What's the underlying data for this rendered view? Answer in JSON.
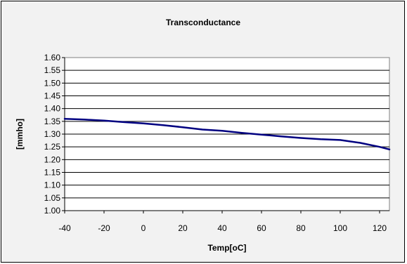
{
  "chart_data": {
    "type": "line",
    "title": "Transconductance",
    "xlabel": "Temp[oC]",
    "ylabel": "[mmho]",
    "xlim": [
      -40,
      125
    ],
    "ylim": [
      1.0,
      1.6
    ],
    "xticks": [
      -40,
      -20,
      0,
      20,
      40,
      60,
      80,
      100,
      120
    ],
    "xtick_labels": [
      "-40",
      "-20",
      "0",
      "20",
      "40",
      "60",
      "80",
      "100",
      "120"
    ],
    "yticks": [
      1.0,
      1.05,
      1.1,
      1.15,
      1.2,
      1.25,
      1.3,
      1.35,
      1.4,
      1.45,
      1.5,
      1.55,
      1.6
    ],
    "ytick_labels": [
      "1.00",
      "1.05",
      "1.10",
      "1.15",
      "1.20",
      "1.25",
      "1.30",
      "1.35",
      "1.40",
      "1.45",
      "1.50",
      "1.55",
      "1.60"
    ],
    "grid": "horizontal",
    "series": [
      {
        "color": "#000080",
        "x": [
          -40,
          -30,
          -20,
          -10,
          0,
          10,
          20,
          30,
          40,
          50,
          60,
          70,
          80,
          90,
          100,
          110,
          120,
          125
        ],
        "y": [
          1.36,
          1.357,
          1.353,
          1.347,
          1.342,
          1.335,
          1.327,
          1.318,
          1.313,
          1.305,
          1.298,
          1.291,
          1.285,
          1.28,
          1.277,
          1.266,
          1.25,
          1.24
        ]
      }
    ],
    "background": "#f2f2f2",
    "plot_background": "#ffffff"
  }
}
